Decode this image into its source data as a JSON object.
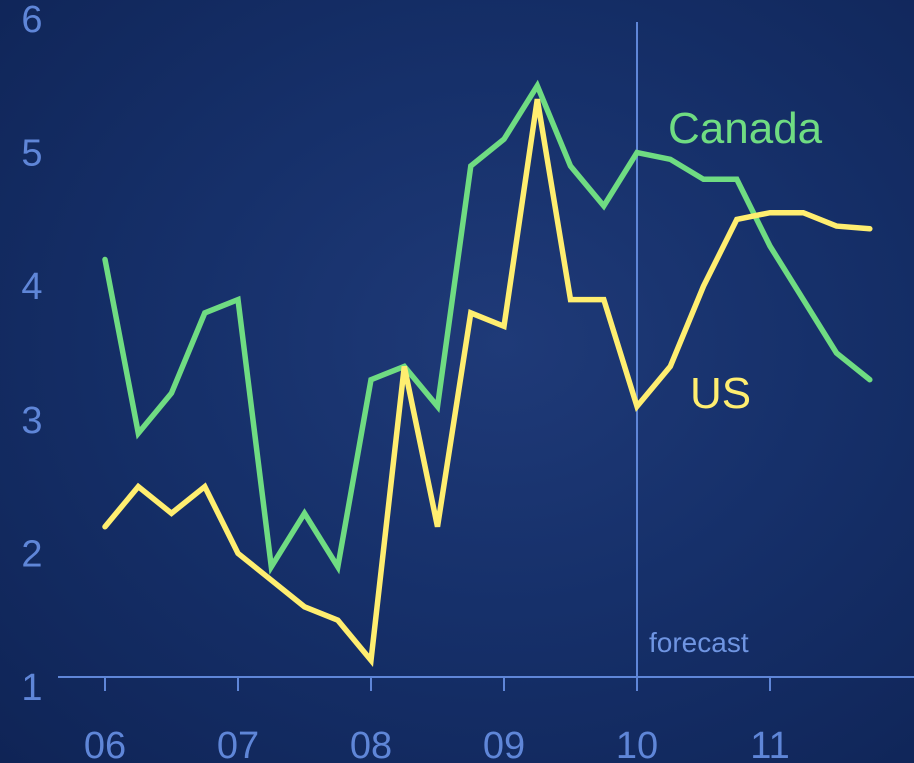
{
  "chart_data": {
    "type": "line",
    "x_labels": [
      "06",
      "07",
      "08",
      "09",
      "10",
      "11"
    ],
    "x_range": [
      2006,
      2012
    ],
    "y_ticks": [
      "1",
      "2",
      "3",
      "4",
      "5",
      "6"
    ],
    "ylim": [
      1,
      6
    ],
    "forecast_start": 2010,
    "forecast_label": "forecast",
    "series": [
      {
        "name": "Canada",
        "color": "#6fdc82",
        "x": [
          2006.0,
          2006.25,
          2006.5,
          2006.75,
          2007.0,
          2007.25,
          2007.5,
          2007.75,
          2008.0,
          2008.25,
          2008.5,
          2008.75,
          2009.0,
          2009.25,
          2009.5,
          2009.75,
          2010.0,
          2010.25,
          2010.5,
          2010.75,
          2011.0,
          2011.25,
          2011.5,
          2011.75
        ],
        "values": [
          4.2,
          2.9,
          3.2,
          3.8,
          3.9,
          1.9,
          2.3,
          1.9,
          3.3,
          3.4,
          3.1,
          4.9,
          5.1,
          5.5,
          4.9,
          4.6,
          5.0,
          4.95,
          4.8,
          4.8,
          4.3,
          3.9,
          3.5,
          3.3
        ]
      },
      {
        "name": "US",
        "color": "#ffee70",
        "x": [
          2006.0,
          2006.25,
          2006.5,
          2006.75,
          2007.0,
          2007.25,
          2007.5,
          2007.75,
          2008.0,
          2008.25,
          2008.5,
          2008.75,
          2009.0,
          2009.25,
          2009.5,
          2009.75,
          2010.0,
          2010.25,
          2010.5,
          2010.75,
          2011.0,
          2011.25,
          2011.5,
          2011.75
        ],
        "values": [
          2.2,
          2.5,
          2.3,
          2.5,
          2.0,
          1.8,
          1.6,
          1.5,
          1.2,
          3.4,
          2.2,
          3.8,
          3.7,
          5.4,
          3.9,
          3.9,
          3.1,
          3.4,
          4.0,
          4.5,
          4.55,
          4.55,
          4.45,
          4.43
        ]
      }
    ]
  }
}
